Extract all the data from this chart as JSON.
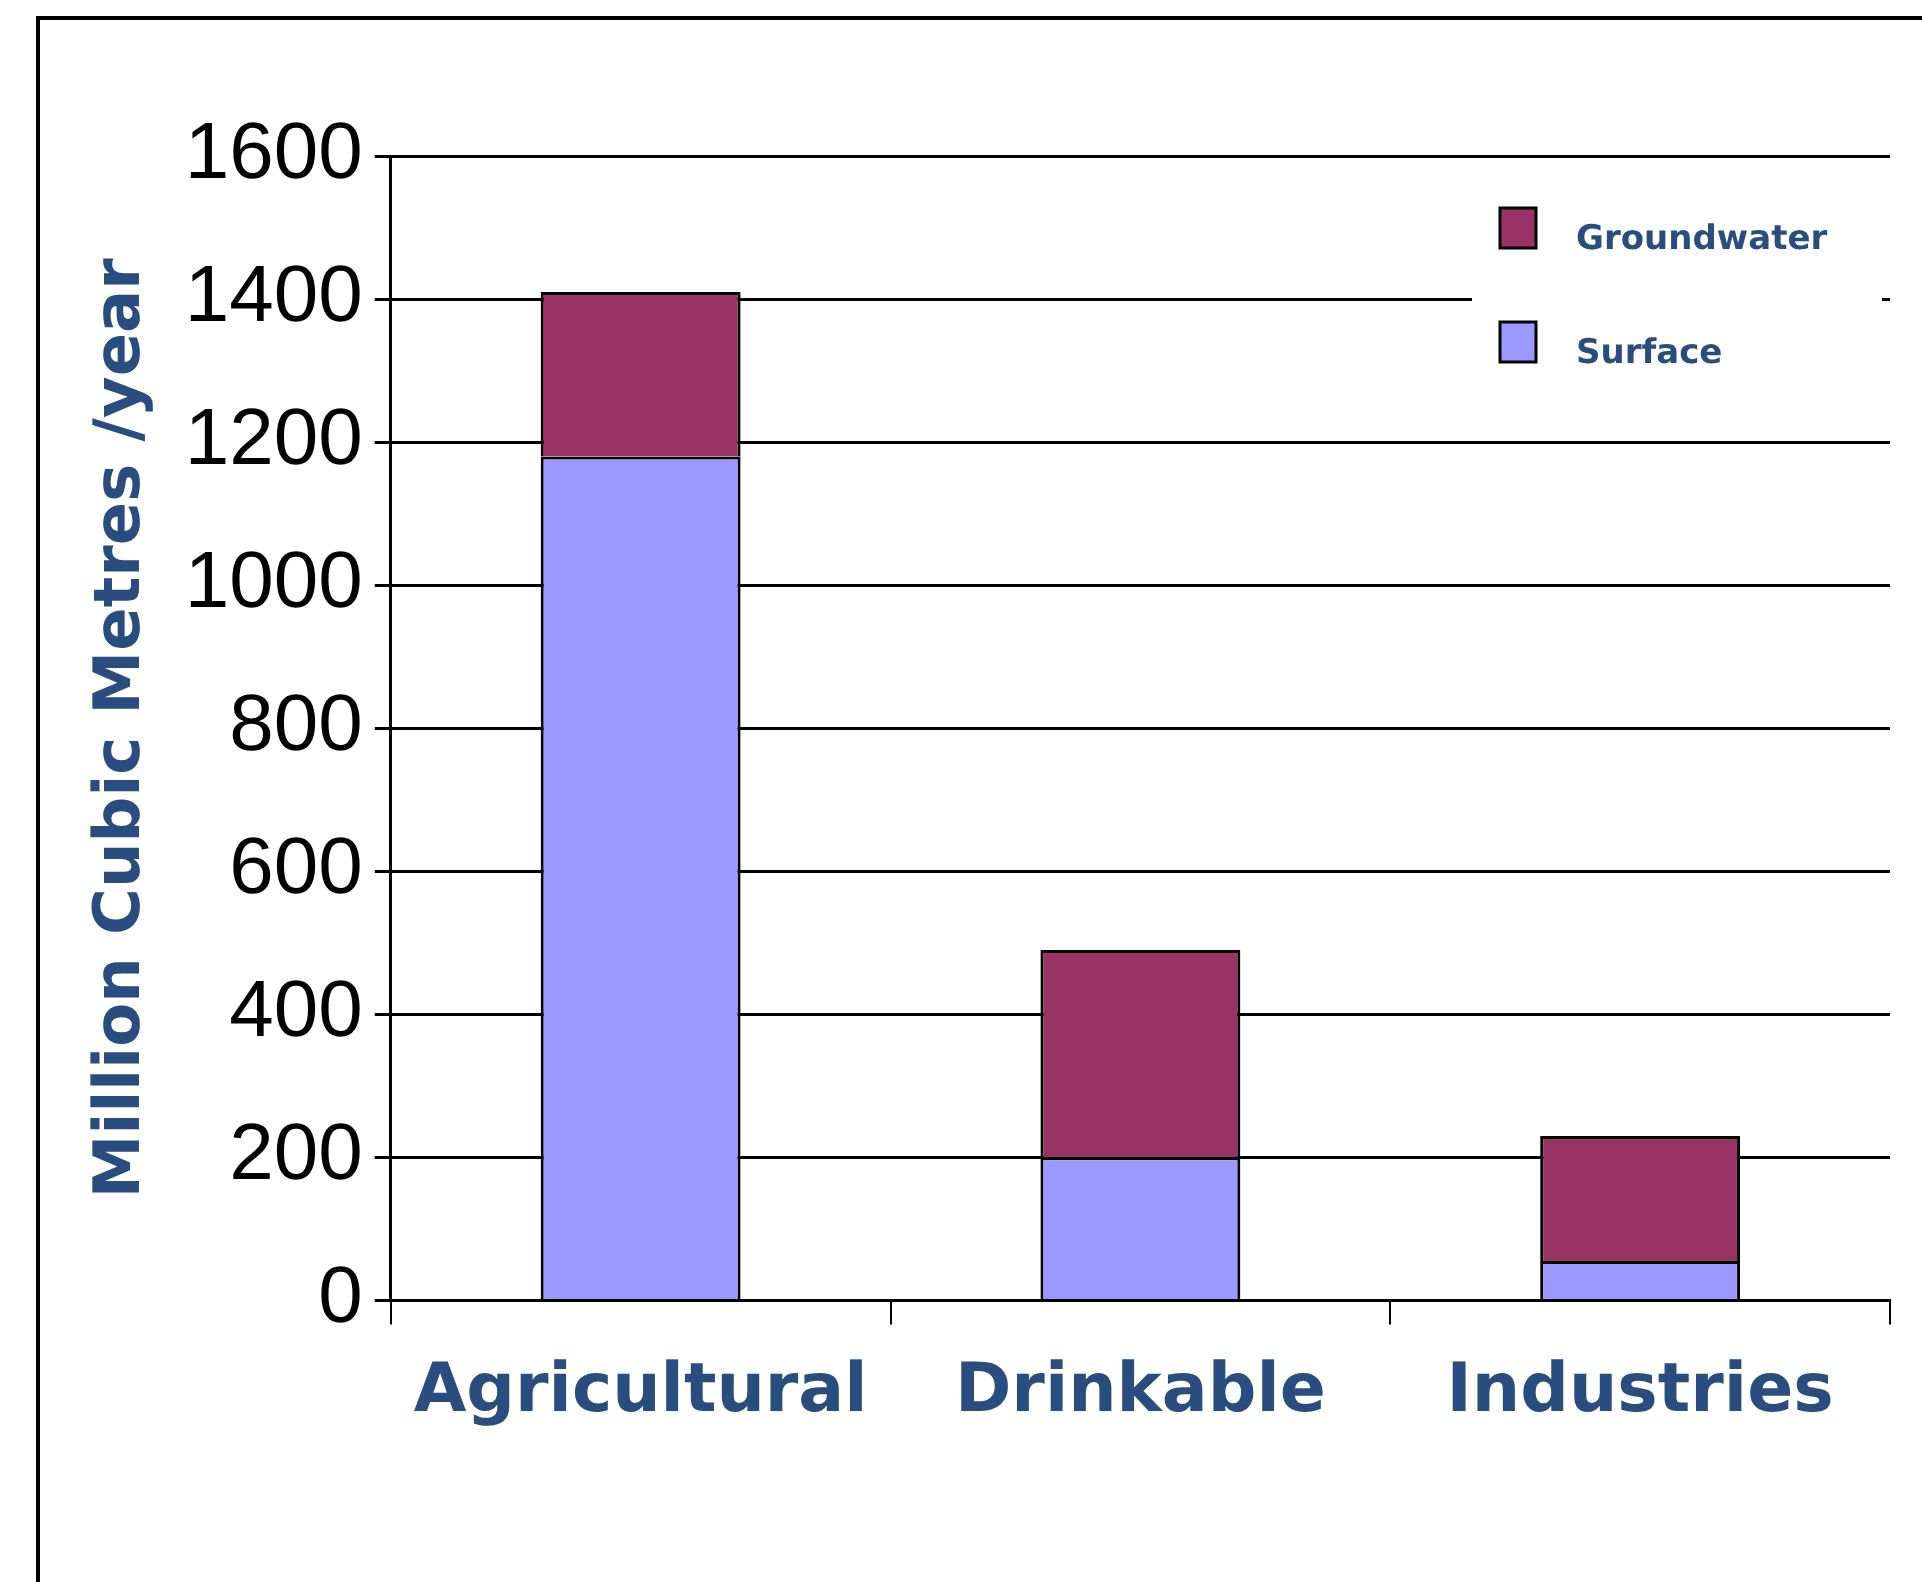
{
  "chart_data": {
    "type": "bar",
    "ylabel": "Million Cubic Metres /year",
    "categories": [
      "Agricultural",
      "Drinkable",
      "Industries"
    ],
    "stacked": true,
    "series": [
      {
        "name": "Surface",
        "color": "#9999ff",
        "values": [
          1180,
          200,
          55
        ]
      },
      {
        "name": "Groundwater",
        "color": "#993366",
        "values": [
          230,
          290,
          175
        ]
      }
    ],
    "ylim": [
      0,
      1600
    ],
    "yticks": [
      0,
      200,
      400,
      600,
      800,
      1000,
      1200,
      1400,
      1600
    ],
    "grid": "y",
    "legend": "top right"
  }
}
